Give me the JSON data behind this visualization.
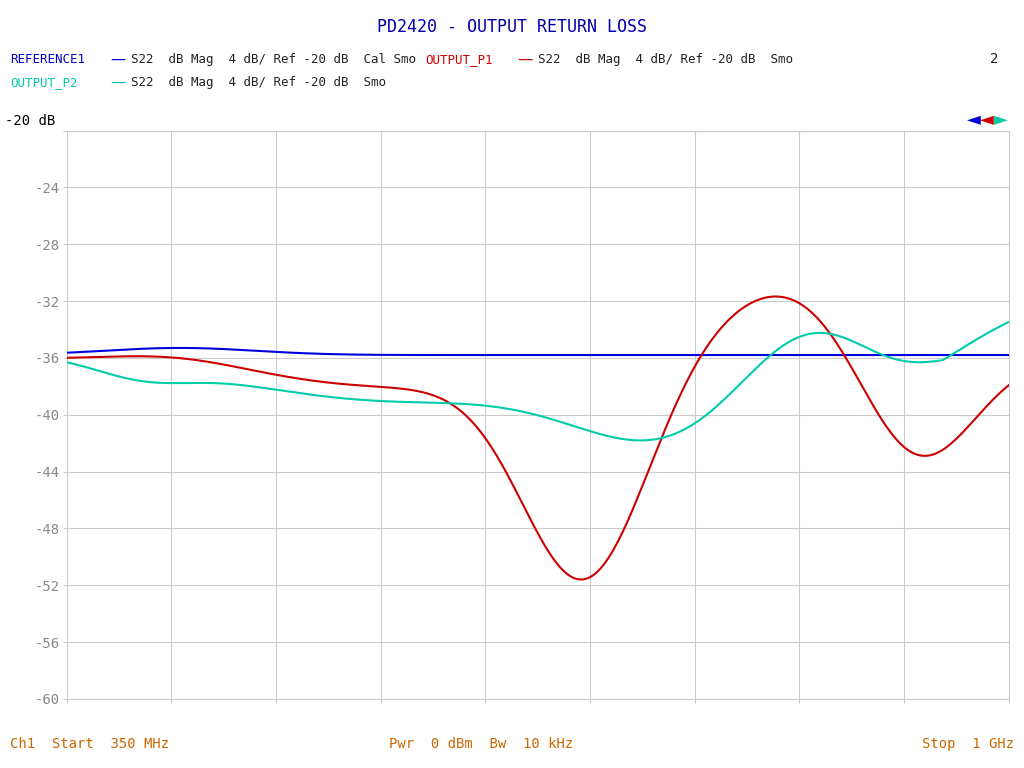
{
  "title": "PD2420 - OUTPUT RETURN LOSS",
  "background_color": "#ffffff",
  "plot_bg_color": "#ffffff",
  "grid_color": "#cccccc",
  "ylim": [
    -60,
    -20
  ],
  "yticks": [
    -20,
    -24,
    -28,
    -32,
    -36,
    -40,
    -44,
    -48,
    -52,
    -56,
    -60
  ],
  "xlim": [
    0,
    1
  ],
  "legend": [
    {
      "label": "REFERENCE1",
      "desc": "S22  dB Mag  4 dB/ Ref -20 dB  Cal Smo",
      "color": "#0000dd",
      "linestyle": "-"
    },
    {
      "label": "OUTPUT_P1",
      "desc": "S22  dB Mag  4 dB/ Ref -20 dB  Smo",
      "color": "#cc0000",
      "linestyle": "-"
    },
    {
      "label": "OUTPUT_P2",
      "desc": "S22  dB Mag  4 dB/ Ref -20 dB  Smo",
      "color": "#00ccaa",
      "linestyle": "-"
    }
  ],
  "ref_line_y": -20,
  "ref_line_label": "-20 dB",
  "bottom_left": "Ch1  Start  350 MHz",
  "bottom_center": "Pwr  0 dBm  Bw  10 kHz",
  "bottom_right": "Stop  1 GHz",
  "marker_label": "2",
  "title_color": "#0000aa",
  "axis_label_color": "#cc6600",
  "tick_color": "#888888"
}
